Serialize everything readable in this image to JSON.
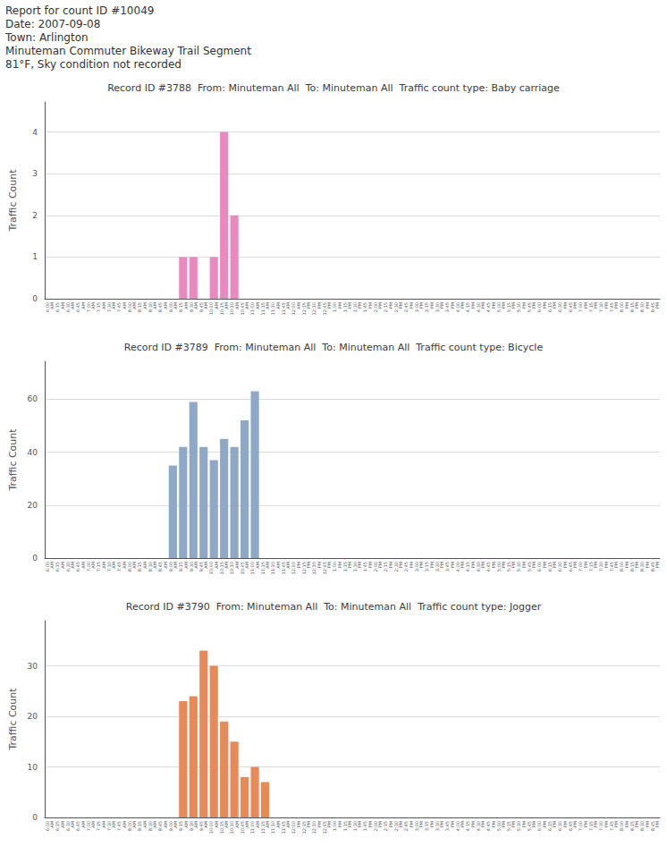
{
  "annotations": [
    "Report for count ID #10049",
    "Date: 2007-09-08",
    "Town: Arlington",
    "Minuteman Commuter Bikeway Trail Segment",
    "81°F, Sky condition not recorded"
  ],
  "chart_data": [
    {
      "type": "bar",
      "title": "Record ID #3788  From: Minuteman All  To: Minuteman All  Traffic count type: Baby carriage",
      "ylabel": "Traffic Count",
      "categories": [
        "6:00\nAM",
        "6:15\nAM",
        "6:30\nAM",
        "6:45\nAM",
        "7:00\nAM",
        "7:15\nAM",
        "7:30\nAM",
        "7:45\nAM",
        "8:00\nAM",
        "8:15\nAM",
        "8:30\nAM",
        "8:45\nAM",
        "9:00\nAM",
        "9:15\nAM",
        "9:30\nAM",
        "9:45\nAM",
        "10:00\nAM",
        "10:15\nAM",
        "10:30\nAM",
        "10:45\nAM",
        "11:00\nAM",
        "11:15\nAM",
        "11:30\nAM",
        "11:45\nAM",
        "12:00\nPM",
        "12:15\nPM",
        "12:30\nPM",
        "12:45\nPM",
        "1:00\nPM",
        "1:15\nPM",
        "1:30\nPM",
        "1:45\nPM",
        "2:00\nPM",
        "2:15\nPM",
        "2:30\nPM",
        "2:45\nPM",
        "3:00\nPM",
        "3:15\nPM",
        "3:30\nPM",
        "3:45\nPM",
        "4:00\nPM",
        "4:15\nPM",
        "4:30\nPM",
        "4:45\nPM",
        "5:00\nPM",
        "5:15\nPM",
        "5:30\nPM",
        "5:45\nPM",
        "6:00\nPM",
        "6:15\nPM",
        "6:30\nPM",
        "6:45\nPM",
        "7:00\nPM",
        "7:15\nPM",
        "7:30\nPM",
        "7:45\nPM",
        "8:00\nPM",
        "8:15\nPM",
        "8:30\nPM",
        "8:45\nPM"
      ],
      "values": [
        0,
        0,
        0,
        0,
        0,
        0,
        0,
        0,
        0,
        0,
        0,
        0,
        0,
        1,
        1,
        0,
        1,
        4,
        2,
        0,
        0,
        0,
        0,
        0,
        0,
        0,
        0,
        0,
        0,
        0,
        0,
        0,
        0,
        0,
        0,
        0,
        0,
        0,
        0,
        0,
        0,
        0,
        0,
        0,
        0,
        0,
        0,
        0,
        0,
        0,
        0,
        0,
        0,
        0,
        0,
        0,
        0,
        0,
        0,
        0
      ],
      "color": "#e88abf",
      "ylim": [
        0,
        4.72
      ],
      "yticks": [
        0,
        1,
        2,
        3,
        4
      ],
      "grid": true
    },
    {
      "type": "bar",
      "title": "Record ID #3789  From: Minuteman All  To: Minuteman All  Traffic count type: Bicycle",
      "ylabel": "Traffic Count",
      "categories": [
        "6:00\nAM",
        "6:15\nAM",
        "6:30\nAM",
        "6:45\nAM",
        "7:00\nAM",
        "7:15\nAM",
        "7:30\nAM",
        "7:45\nAM",
        "8:00\nAM",
        "8:15\nAM",
        "8:30\nAM",
        "8:45\nAM",
        "9:00\nAM",
        "9:15\nAM",
        "9:30\nAM",
        "9:45\nAM",
        "10:00\nAM",
        "10:15\nAM",
        "10:30\nAM",
        "10:45\nAM",
        "11:00\nAM",
        "11:15\nAM",
        "11:30\nAM",
        "11:45\nAM",
        "12:00\nPM",
        "12:15\nPM",
        "12:30\nPM",
        "12:45\nPM",
        "1:00\nPM",
        "1:15\nPM",
        "1:30\nPM",
        "1:45\nPM",
        "2:00\nPM",
        "2:15\nPM",
        "2:30\nPM",
        "2:45\nPM",
        "3:00\nPM",
        "3:15\nPM",
        "3:30\nPM",
        "3:45\nPM",
        "4:00\nPM",
        "4:15\nPM",
        "4:30\nPM",
        "4:45\nPM",
        "5:00\nPM",
        "5:15\nPM",
        "5:30\nPM",
        "5:45\nPM",
        "6:00\nPM",
        "6:15\nPM",
        "6:30\nPM",
        "6:45\nPM",
        "7:00\nPM",
        "7:15\nPM",
        "7:30\nPM",
        "7:45\nPM",
        "8:00\nPM",
        "8:15\nPM",
        "8:30\nPM",
        "8:45\nPM"
      ],
      "values": [
        0,
        0,
        0,
        0,
        0,
        0,
        0,
        0,
        0,
        0,
        0,
        0,
        35,
        42,
        59,
        42,
        37,
        45,
        42,
        52,
        63,
        0,
        0,
        0,
        0,
        0,
        0,
        0,
        0,
        0,
        0,
        0,
        0,
        0,
        0,
        0,
        0,
        0,
        0,
        0,
        0,
        0,
        0,
        0,
        0,
        0,
        0,
        0,
        0,
        0,
        0,
        0,
        0,
        0,
        0,
        0,
        0,
        0,
        0,
        0
      ],
      "color": "#8fa8c8",
      "ylim": [
        0,
        74.34
      ],
      "yticks": [
        0,
        20,
        40,
        60
      ],
      "grid": true
    },
    {
      "type": "bar",
      "title": "Record ID #3790  From: Minuteman All  To: Minuteman All  Traffic count type: Jogger",
      "ylabel": "Traffic Count",
      "categories": [
        "6:00\nAM",
        "6:15\nAM",
        "6:30\nAM",
        "6:45\nAM",
        "7:00\nAM",
        "7:15\nAM",
        "7:30\nAM",
        "7:45\nAM",
        "8:00\nAM",
        "8:15\nAM",
        "8:30\nAM",
        "8:45\nAM",
        "9:00\nAM",
        "9:15\nAM",
        "9:30\nAM",
        "9:45\nAM",
        "10:00\nAM",
        "10:15\nAM",
        "10:30\nAM",
        "10:45\nAM",
        "11:00\nAM",
        "11:15\nAM",
        "11:30\nAM",
        "11:45\nAM",
        "12:00\nPM",
        "12:15\nPM",
        "12:30\nPM",
        "12:45\nPM",
        "1:00\nPM",
        "1:15\nPM",
        "1:30\nPM",
        "1:45\nPM",
        "2:00\nPM",
        "2:15\nPM",
        "2:30\nPM",
        "2:45\nPM",
        "3:00\nPM",
        "3:15\nPM",
        "3:30\nPM",
        "3:45\nPM",
        "4:00\nPM",
        "4:15\nPM",
        "4:30\nPM",
        "4:45\nPM",
        "5:00\nPM",
        "5:15\nPM",
        "5:30\nPM",
        "5:45\nPM",
        "6:00\nPM",
        "6:15\nPM",
        "6:30\nPM",
        "6:45\nPM",
        "7:00\nPM",
        "7:15\nPM",
        "7:30\nPM",
        "7:45\nPM",
        "8:00\nPM",
        "8:15\nPM",
        "8:30\nPM",
        "8:45\nPM"
      ],
      "values": [
        0,
        0,
        0,
        0,
        0,
        0,
        0,
        0,
        0,
        0,
        0,
        0,
        0,
        23,
        24,
        33,
        30,
        19,
        15,
        8,
        10,
        7,
        0,
        0,
        0,
        0,
        0,
        0,
        0,
        0,
        0,
        0,
        0,
        0,
        0,
        0,
        0,
        0,
        0,
        0,
        0,
        0,
        0,
        0,
        0,
        0,
        0,
        0,
        0,
        0,
        0,
        0,
        0,
        0,
        0,
        0,
        0,
        0,
        0,
        0
      ],
      "color": "#e8895a",
      "ylim": [
        0,
        38.94
      ],
      "yticks": [
        0,
        10,
        20,
        30
      ],
      "grid": true
    }
  ]
}
